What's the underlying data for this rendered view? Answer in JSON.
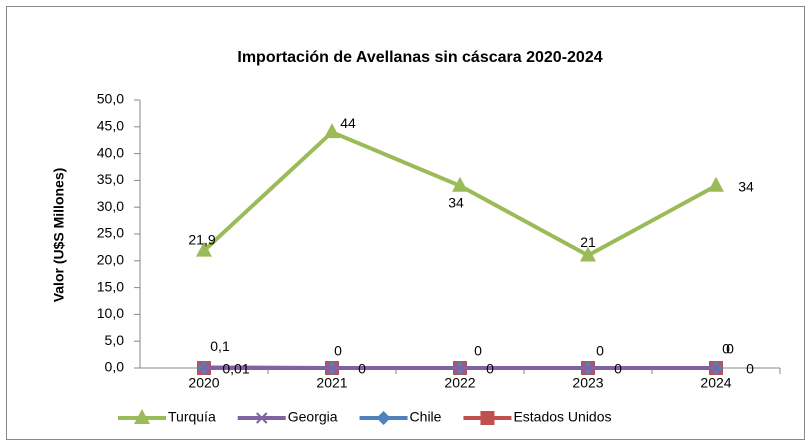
{
  "chart_data": {
    "type": "line",
    "title": "Importación de Avellanas sin cáscara 2020-2024",
    "y_label": "Valor (U$S Millones)",
    "categories": [
      "2020",
      "2021",
      "2022",
      "2023",
      "2024"
    ],
    "series": [
      {
        "name": "Turquía",
        "color": "#9bbb59",
        "marker": "triangle",
        "values": [
          21.9,
          44,
          34,
          21,
          34
        ],
        "value_labels": [
          "21,9",
          "44",
          "34",
          "21",
          "34"
        ]
      },
      {
        "name": "Georgia",
        "color": "#8064a2",
        "marker": "x",
        "values": [
          0.1,
          0,
          0,
          0,
          0
        ],
        "value_labels": [
          "0,1",
          "0",
          "0",
          "0",
          "0"
        ]
      },
      {
        "name": "Chile",
        "color": "#4f81bd",
        "marker": "diamond",
        "values": [
          0.01,
          0,
          0,
          0,
          0
        ],
        "value_labels": [
          "0,01",
          "0",
          "0",
          "0",
          "0"
        ]
      },
      {
        "name": "Estados Unidos",
        "color": "#c0504d",
        "marker": "square",
        "values": [
          0,
          0,
          0,
          0,
          0
        ],
        "value_labels": [
          null,
          null,
          null,
          null,
          "0"
        ]
      }
    ],
    "ylim": [
      0,
      50
    ],
    "yticks": [
      {
        "value": 0,
        "label": "0,0"
      },
      {
        "value": 5,
        "label": "5,0"
      },
      {
        "value": 10,
        "label": "10,0"
      },
      {
        "value": 15,
        "label": "15,0"
      },
      {
        "value": 20,
        "label": "20,0"
      },
      {
        "value": 25,
        "label": "25,0"
      },
      {
        "value": 30,
        "label": "30,0"
      },
      {
        "value": 35,
        "label": "35,0"
      },
      {
        "value": 40,
        "label": "40,0"
      },
      {
        "value": 45,
        "label": "45,0"
      },
      {
        "value": 50,
        "label": "50,0"
      }
    ],
    "grid": false,
    "legend": "bottom"
  }
}
